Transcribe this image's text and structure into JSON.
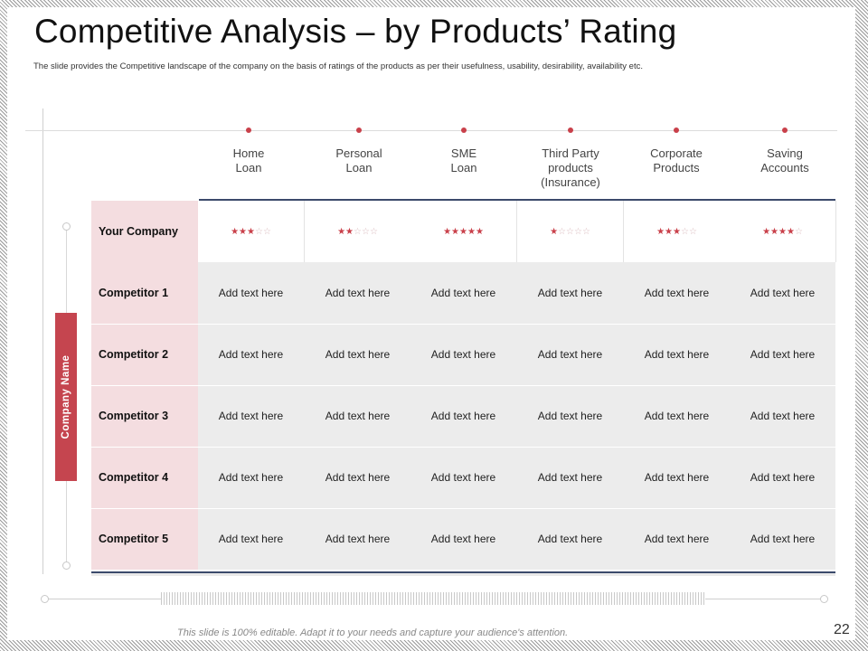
{
  "title": "Competitive Analysis – by Products’ Rating",
  "subtitle": "The slide provides the Competitive landscape of the company on the basis of ratings of the products as per their usefulness, usability, desirability, availability etc.",
  "side_label": "Company Name",
  "columns": [
    {
      "label": "Home\nLoan"
    },
    {
      "label": "Personal\nLoan"
    },
    {
      "label": "SME\nLoan"
    },
    {
      "label": "Third Party\nproducts\n(Insurance)"
    },
    {
      "label": "Corporate\nProducts"
    },
    {
      "label": "Saving\nAccounts"
    }
  ],
  "your_company": {
    "label": "Your Company",
    "ratings": [
      3,
      2,
      5,
      1,
      3,
      4
    ],
    "max_rating": 5
  },
  "competitors": [
    {
      "label": "Competitor 1",
      "cells": [
        "Add text here",
        "Add text here",
        "Add text here",
        "Add text here",
        "Add text here",
        "Add text here"
      ]
    },
    {
      "label": "Competitor 2",
      "cells": [
        "Add text here",
        "Add text here",
        "Add text here",
        "Add text here",
        "Add text here",
        "Add text here"
      ]
    },
    {
      "label": "Competitor 3",
      "cells": [
        "Add text here",
        "Add text here",
        "Add text here",
        "Add text here",
        "Add text here",
        "Add text here"
      ]
    },
    {
      "label": "Competitor 4",
      "cells": [
        "Add text here",
        "Add text here",
        "Add text here",
        "Add text here",
        "Add text here",
        "Add text here"
      ]
    },
    {
      "label": "Competitor 5",
      "cells": [
        "Add text here",
        "Add text here",
        "Add text here",
        "Add text here",
        "Add text here",
        "Add text here"
      ]
    }
  ],
  "footer": "This slide is 100% editable. Adapt it to your needs and capture your audience's attention.",
  "page_number": "22",
  "colors": {
    "accent": "#c9404a",
    "rule": "#3b4a6b",
    "label_bg": "#f4dde0",
    "cell_bg": "#ececec"
  }
}
